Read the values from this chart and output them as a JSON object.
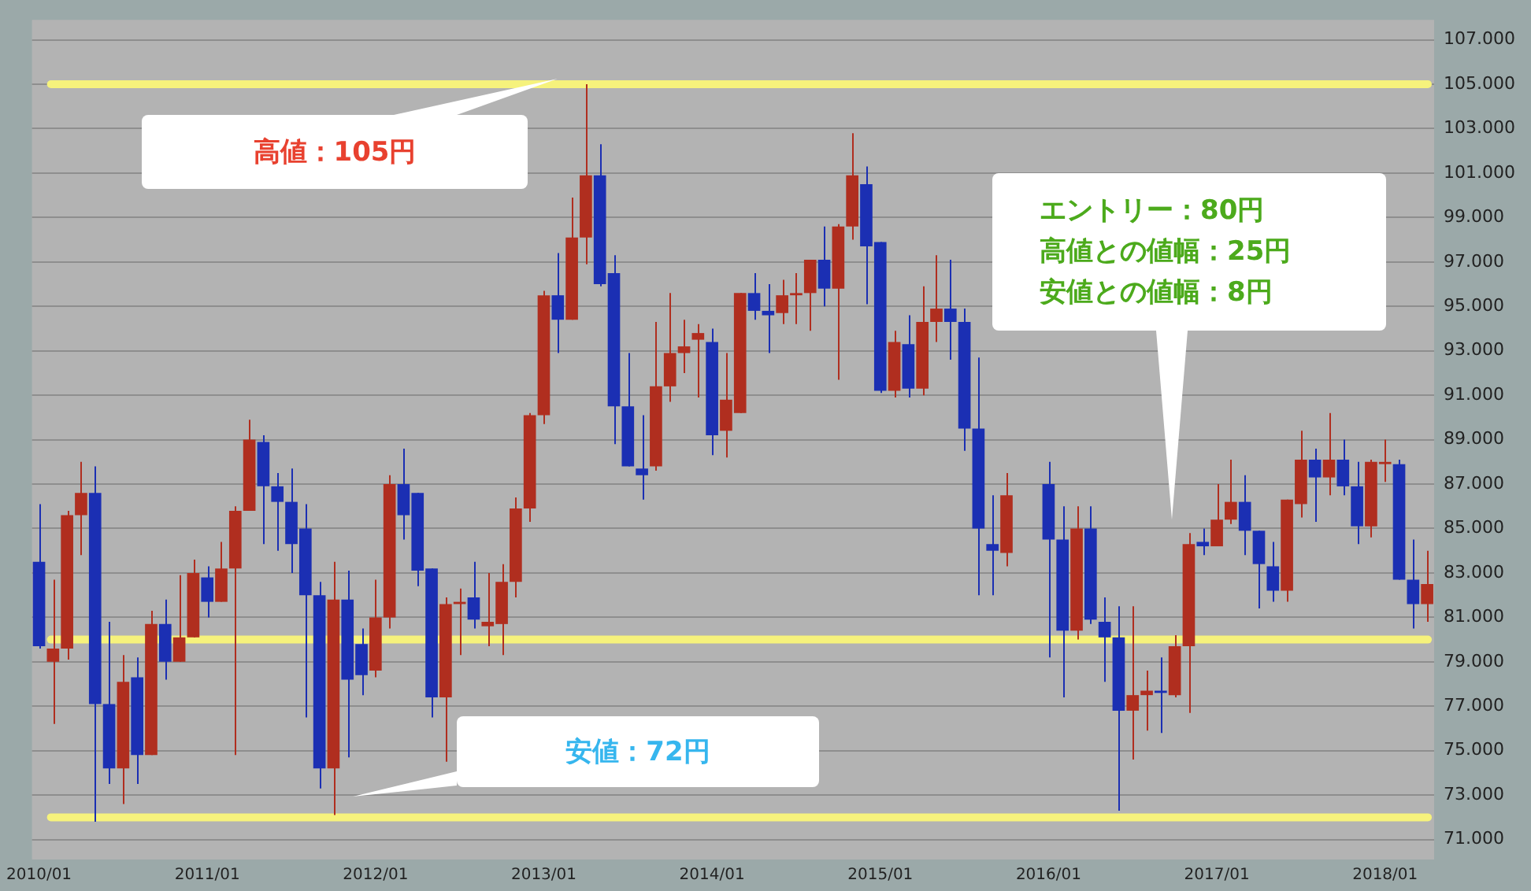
{
  "chart_data": {
    "type": "candlestick",
    "categories": [
      "2010/01",
      null,
      null,
      null,
      null,
      null,
      null,
      null,
      null,
      null,
      null,
      null,
      "2011/01",
      null,
      null,
      null,
      null,
      null,
      null,
      null,
      null,
      null,
      null,
      null,
      "2012/01",
      null,
      null,
      null,
      null,
      null,
      null,
      null,
      null,
      null,
      null,
      null,
      "2013/01",
      null,
      null,
      null,
      null,
      null,
      null,
      null,
      null,
      null,
      null,
      null,
      "2014/01",
      null,
      null,
      null,
      null,
      null,
      null,
      null,
      null,
      null,
      null,
      null,
      "2015/01",
      null,
      null,
      null,
      null,
      null,
      null,
      null,
      null,
      null,
      null,
      null,
      "2016/01",
      null,
      null,
      null,
      null,
      null,
      null,
      null,
      null,
      null,
      null,
      null,
      "2017/01",
      null,
      null,
      null,
      null,
      null,
      null,
      null,
      null,
      null,
      null,
      null,
      "2018/01",
      null,
      null,
      null
    ],
    "ohlc": [
      [
        83.5,
        86.1,
        79.6,
        79.7
      ],
      [
        79.0,
        82.7,
        76.2,
        79.6
      ],
      [
        79.6,
        85.8,
        79.1,
        85.6
      ],
      [
        85.6,
        88.0,
        83.8,
        86.6
      ],
      [
        86.6,
        87.8,
        71.8,
        77.1
      ],
      [
        77.1,
        80.8,
        73.5,
        74.2
      ],
      [
        74.2,
        79.3,
        72.6,
        78.1
      ],
      [
        78.3,
        79.2,
        73.5,
        74.8
      ],
      [
        74.8,
        81.3,
        74.8,
        80.7
      ],
      [
        80.7,
        81.8,
        78.2,
        79.0
      ],
      [
        79.0,
        82.9,
        79.0,
        80.1
      ],
      [
        80.1,
        83.6,
        80.1,
        83.0
      ],
      [
        82.8,
        83.3,
        81.0,
        81.7
      ],
      [
        81.7,
        84.4,
        81.7,
        83.2
      ],
      [
        83.2,
        86.0,
        74.8,
        85.8
      ],
      [
        85.8,
        89.9,
        85.8,
        89.0
      ],
      [
        88.9,
        89.2,
        84.3,
        86.9
      ],
      [
        86.9,
        87.5,
        84.0,
        86.2
      ],
      [
        86.2,
        87.7,
        83.0,
        84.3
      ],
      [
        85.0,
        86.1,
        76.5,
        82.0
      ],
      [
        82.0,
        82.6,
        73.3,
        74.2
      ],
      [
        74.2,
        83.5,
        72.1,
        81.8
      ],
      [
        81.8,
        83.1,
        74.7,
        78.2
      ],
      [
        79.8,
        80.5,
        77.5,
        78.4
      ],
      [
        78.6,
        82.7,
        78.3,
        81.0
      ],
      [
        81.0,
        87.4,
        80.5,
        87.0
      ],
      [
        87.0,
        88.6,
        84.5,
        85.6
      ],
      [
        86.6,
        86.6,
        82.4,
        83.1
      ],
      [
        83.2,
        83.2,
        76.5,
        77.4
      ],
      [
        77.4,
        81.9,
        74.5,
        81.6
      ],
      [
        81.6,
        82.3,
        79.3,
        81.7
      ],
      [
        81.9,
        83.5,
        80.5,
        80.9
      ],
      [
        80.6,
        83.0,
        79.7,
        80.8
      ],
      [
        80.7,
        83.4,
        79.3,
        82.6
      ],
      [
        82.6,
        86.4,
        81.9,
        85.9
      ],
      [
        85.9,
        90.2,
        85.3,
        90.1
      ],
      [
        90.1,
        95.7,
        89.7,
        95.5
      ],
      [
        95.5,
        97.4,
        92.9,
        94.4
      ],
      [
        94.4,
        99.9,
        94.4,
        98.1
      ],
      [
        98.1,
        105.0,
        96.9,
        100.9
      ],
      [
        100.9,
        102.3,
        95.9,
        96.0
      ],
      [
        96.5,
        97.3,
        88.8,
        90.5
      ],
      [
        90.5,
        92.9,
        87.8,
        87.8
      ],
      [
        87.7,
        90.1,
        86.3,
        87.4
      ],
      [
        87.8,
        94.3,
        87.6,
        91.4
      ],
      [
        91.4,
        95.6,
        90.7,
        92.9
      ],
      [
        92.9,
        94.4,
        92.0,
        93.2
      ],
      [
        93.5,
        94.2,
        90.9,
        93.8
      ],
      [
        93.4,
        94.0,
        88.3,
        89.2
      ],
      [
        89.4,
        92.9,
        88.2,
        90.8
      ],
      [
        90.2,
        95.6,
        90.2,
        95.6
      ],
      [
        95.6,
        96.5,
        94.4,
        94.8
      ],
      [
        94.8,
        96.0,
        92.9,
        94.6
      ],
      [
        94.7,
        96.2,
        94.2,
        95.5
      ],
      [
        95.5,
        96.5,
        94.2,
        95.6
      ],
      [
        95.6,
        97.1,
        93.9,
        97.1
      ],
      [
        97.1,
        98.6,
        95.0,
        95.8
      ],
      [
        95.8,
        98.7,
        91.7,
        98.6
      ],
      [
        98.6,
        102.8,
        98.0,
        100.9
      ],
      [
        100.5,
        101.3,
        95.1,
        97.7
      ],
      [
        97.9,
        97.9,
        91.1,
        91.2
      ],
      [
        91.2,
        93.9,
        90.9,
        93.4
      ],
      [
        93.3,
        94.6,
        90.9,
        91.3
      ],
      [
        91.3,
        95.9,
        91.0,
        94.3
      ],
      [
        94.3,
        97.3,
        93.4,
        94.9
      ],
      [
        94.9,
        97.1,
        92.6,
        94.3
      ],
      [
        94.3,
        94.9,
        88.5,
        89.5
      ],
      [
        89.5,
        92.7,
        82.0,
        85.0
      ],
      [
        84.3,
        86.5,
        82.0,
        84.0
      ],
      [
        83.9,
        87.5,
        83.3,
        86.5
      ],
      null,
      null,
      [
        87.0,
        88.0,
        79.2,
        84.5
      ],
      [
        84.5,
        86.0,
        77.4,
        80.4
      ],
      [
        80.4,
        86.0,
        80.0,
        85.0
      ],
      [
        85.0,
        86.0,
        80.7,
        80.9
      ],
      [
        80.8,
        81.9,
        78.1,
        80.1
      ],
      [
        80.1,
        81.5,
        72.3,
        76.8
      ],
      [
        76.8,
        81.5,
        74.6,
        77.5
      ],
      [
        77.5,
        78.6,
        75.9,
        77.7
      ],
      [
        77.7,
        79.2,
        75.8,
        77.6
      ],
      [
        77.5,
        80.2,
        77.4,
        79.7
      ],
      [
        79.7,
        84.8,
        76.7,
        84.3
      ],
      [
        84.4,
        85.0,
        83.8,
        84.2
      ],
      [
        84.2,
        87.0,
        84.2,
        85.4
      ],
      [
        85.4,
        88.1,
        85.2,
        86.2
      ],
      [
        86.2,
        87.4,
        83.8,
        84.9
      ],
      [
        84.9,
        84.9,
        81.4,
        83.4
      ],
      [
        83.3,
        84.4,
        81.7,
        82.2
      ],
      [
        82.2,
        86.3,
        81.7,
        86.3
      ],
      [
        86.1,
        89.4,
        85.5,
        88.1
      ],
      [
        88.1,
        88.6,
        85.3,
        87.3
      ],
      [
        87.3,
        90.2,
        86.5,
        88.1
      ],
      [
        88.1,
        89.0,
        86.5,
        86.9
      ],
      [
        86.9,
        88.0,
        84.3,
        85.1
      ],
      [
        85.1,
        88.1,
        84.6,
        88.0
      ],
      [
        87.9,
        89.0,
        87.1,
        88.0
      ],
      [
        87.9,
        88.1,
        82.7,
        82.7
      ],
      [
        82.7,
        84.5,
        80.5,
        81.6
      ],
      [
        81.6,
        84.0,
        80.8,
        82.5
      ]
    ],
    "colors": [
      "#1b2fb3",
      "#b02e1f",
      "#b02e1f",
      "#b02e1f",
      "#1b2fb3",
      "#1b2fb3",
      "#b02e1f",
      "#1b2fb3",
      "#b02e1f",
      "#1b2fb3",
      "#b02e1f",
      "#b02e1f",
      "#1b2fb3",
      "#b02e1f",
      "#b02e1f",
      "#b02e1f",
      "#1b2fb3",
      "#1b2fb3",
      "#1b2fb3",
      "#1b2fb3",
      "#1b2fb3",
      "#b02e1f",
      "#1b2fb3",
      "#1b2fb3",
      "#b02e1f",
      "#b02e1f",
      "#1b2fb3",
      "#1b2fb3",
      "#1b2fb3",
      "#b02e1f",
      "#b02e1f",
      "#1b2fb3",
      "#b02e1f",
      "#b02e1f",
      "#b02e1f",
      "#b02e1f",
      "#b02e1f",
      "#1b2fb3",
      "#b02e1f",
      "#b02e1f",
      "#1b2fb3",
      "#1b2fb3",
      "#1b2fb3",
      "#1b2fb3",
      "#b02e1f",
      "#b02e1f",
      "#b02e1f",
      "#b02e1f",
      "#1b2fb3",
      "#b02e1f",
      "#b02e1f",
      "#1b2fb3",
      "#1b2fb3",
      "#b02e1f",
      "#b02e1f",
      "#b02e1f",
      "#1b2fb3",
      "#b02e1f",
      "#b02e1f",
      "#1b2fb3",
      "#1b2fb3",
      "#b02e1f",
      "#1b2fb3",
      "#b02e1f",
      "#b02e1f",
      "#1b2fb3",
      "#1b2fb3",
      "#1b2fb3",
      "#1b2fb3",
      "#b02e1f",
      "#1b2fb3",
      "#1b2fb3",
      "#1b2fb3",
      "#1b2fb3",
      "#b02e1f",
      "#1b2fb3",
      "#1b2fb3",
      "#1b2fb3",
      "#b02e1f",
      "#b02e1f",
      "#1b2fb3",
      "#b02e1f",
      "#b02e1f",
      "#1b2fb3",
      "#b02e1f",
      "#b02e1f",
      "#1b2fb3",
      "#1b2fb3",
      "#1b2fb3",
      "#b02e1f",
      "#b02e1f",
      "#1b2fb3",
      "#b02e1f",
      "#1b2fb3",
      "#1b2fb3",
      "#b02e1f",
      "#b02e1f",
      "#1b2fb3",
      "#1b2fb3",
      "#b02e1f"
    ],
    "ylim": [
      70.1,
      107.9
    ],
    "yticks": [
      {
        "value": 71,
        "label": "71.000"
      },
      {
        "value": 73,
        "label": "73.000"
      },
      {
        "value": 75,
        "label": "75.000"
      },
      {
        "value": 77,
        "label": "77.000"
      },
      {
        "value": 79,
        "label": "79.000"
      },
      {
        "value": 81,
        "label": "81.000"
      },
      {
        "value": 83,
        "label": "83.000"
      },
      {
        "value": 85,
        "label": "85.000"
      },
      {
        "value": 87,
        "label": "87.000"
      },
      {
        "value": 89,
        "label": "89.000"
      },
      {
        "value": 91,
        "label": "91.000"
      },
      {
        "value": 93,
        "label": "93.000"
      },
      {
        "value": 95,
        "label": "95.000"
      },
      {
        "value": 97,
        "label": "97.000"
      },
      {
        "value": 99,
        "label": "99.000"
      },
      {
        "value": 101,
        "label": "101.000"
      },
      {
        "value": 103,
        "label": "103.000"
      },
      {
        "value": 105,
        "label": "105.000"
      },
      {
        "value": 107,
        "label": "107.000"
      }
    ],
    "grid": "y",
    "legend": false,
    "ref_lines": [
      {
        "axis": "y",
        "value": 105,
        "color": "#f6f27c"
      },
      {
        "axis": "y",
        "value": 80,
        "color": "#f6f27c"
      },
      {
        "axis": "y",
        "value": 72,
        "color": "#f6f27c"
      }
    ],
    "annotations": [
      "高値：105円",
      "安値：72円",
      "エントリー：80円",
      "高値との値幅：25円",
      "安値との値幅：8円"
    ]
  }
}
